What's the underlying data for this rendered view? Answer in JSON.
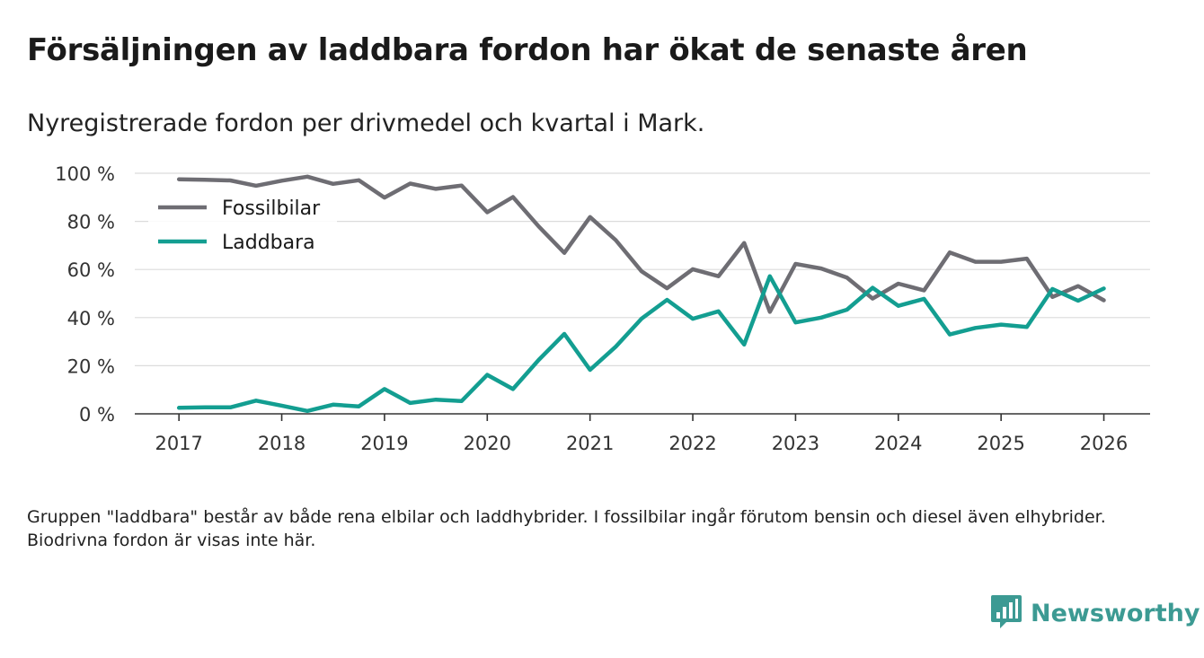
{
  "header": {
    "title": "Försäljningen av laddbara fordon har ökat de senaste åren",
    "subtitle": "Nyregistrerade fordon per drivmedel och kvartal i Mark."
  },
  "footnote": "Gruppen \"laddbara\" består av både rena elbilar och laddhybrider. I fossilbilar ingår förutom bensin och diesel även elhybrider. Biodrivna fordon är visas inte här.",
  "brand": {
    "name": "Newsworthy",
    "color": "#3c9a93",
    "icon": "bar-chart-speech-bubble-icon"
  },
  "chart_data": {
    "type": "line",
    "title": "Försäljningen av laddbara fordon har ökat de senaste åren",
    "subtitle": "Nyregistrerade fordon per drivmedel och kvartal i Mark.",
    "xlabel": "",
    "ylabel": "",
    "x": [
      2017.0,
      2017.25,
      2017.5,
      2017.75,
      2018.0,
      2018.25,
      2018.5,
      2018.75,
      2019.0,
      2019.25,
      2019.5,
      2019.75,
      2020.0,
      2020.25,
      2020.5,
      2020.75,
      2021.0,
      2021.25,
      2021.5,
      2021.75,
      2022.0,
      2022.25,
      2022.5,
      2022.75,
      2023.0,
      2023.25,
      2023.5,
      2023.75,
      2024.0,
      2024.25,
      2024.5,
      2024.75,
      2025.0,
      2025.25,
      2025.5,
      2025.75,
      2026.0
    ],
    "xlim": [
      2016.57,
      2026.45
    ],
    "ylim": [
      0,
      100
    ],
    "x_ticks": [
      2017,
      2018,
      2019,
      2020,
      2021,
      2022,
      2023,
      2024,
      2025,
      2026
    ],
    "x_tick_labels": [
      "2017",
      "2018",
      "2019",
      "2020",
      "2021",
      "2022",
      "2023",
      "2024",
      "2025",
      "2026"
    ],
    "y_ticks": [
      0,
      20,
      40,
      60,
      80,
      100
    ],
    "y_tick_labels": [
      "0 %",
      "20 %",
      "40 %",
      "60 %",
      "80 %",
      "100 %"
    ],
    "grid": true,
    "legend_position": "top-left",
    "series": [
      {
        "name": "Fossilbilar",
        "color": "#6e6d73",
        "values": [
          97.5,
          97.3,
          97,
          94.8,
          96.9,
          98.6,
          95.6,
          97.1,
          89.9,
          95.7,
          93.5,
          94.9,
          83.8,
          90.1,
          77.9,
          66.9,
          81.8,
          72.2,
          59.3,
          52.2,
          60.1,
          57.2,
          71,
          42.4,
          62.3,
          60.4,
          56.6,
          47.9,
          54.1,
          51.3,
          67.1,
          63.2,
          63.2,
          64.5,
          48.6,
          53.1,
          47.2
        ]
      },
      {
        "name": "Laddbara",
        "color": "#139e91",
        "values": [
          2.5,
          2.7,
          2.7,
          5.5,
          3.4,
          1.2,
          3.8,
          3.1,
          10.3,
          4.5,
          5.9,
          5.3,
          16.2,
          10.3,
          22.4,
          33.2,
          18.3,
          27.9,
          39.5,
          47.4,
          39.5,
          42.6,
          28.8,
          57.2,
          38,
          40,
          43.3,
          52.4,
          44.9,
          47.8,
          33,
          35.7,
          37.1,
          36.1,
          51.9,
          47,
          52.1
        ]
      }
    ]
  }
}
